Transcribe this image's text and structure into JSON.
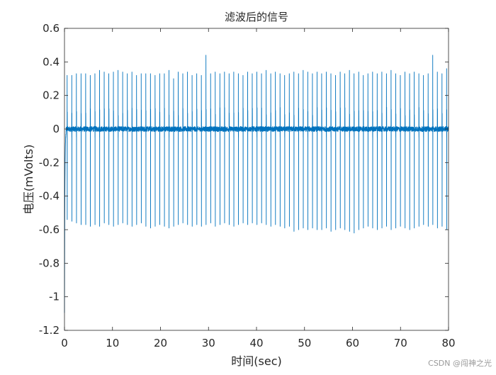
{
  "chart_data": {
    "type": "line",
    "title": "滤波后的信号",
    "xlabel": "时间(sec)",
    "ylabel": "电压(mVolts)",
    "xlim": [
      0,
      80
    ],
    "ylim": [
      -1.2,
      0.6
    ],
    "xticks": [
      0,
      10,
      20,
      30,
      40,
      50,
      60,
      70,
      80
    ],
    "yticks": [
      0.6,
      0.4,
      0.2,
      0,
      -0.2,
      -0.4,
      -0.6,
      -0.8,
      -1,
      -1.2
    ],
    "xtick_labels": [
      "0",
      "10",
      "20",
      "30",
      "40",
      "50",
      "60",
      "70",
      "80"
    ],
    "ytick_labels": [
      "0.6",
      "0.4",
      "0.2",
      "0",
      "-0.2",
      "-0.4",
      "-0.6",
      "-0.8",
      "-1",
      "-1.2"
    ],
    "grid": false,
    "line_color": "#0072BD",
    "series": [
      {
        "beat_period_sec": 0.964,
        "first_beat_sec": 0.55,
        "noise_amplitude": 0.015,
        "initial_dip": -1.1,
        "x": [
          0.55,
          1.52,
          2.48,
          3.45,
          4.41,
          5.37,
          6.34,
          7.3,
          8.27,
          9.23,
          10.19,
          11.16,
          12.12,
          13.09,
          14.05,
          15.01,
          15.98,
          16.94,
          17.91,
          18.87,
          19.83,
          20.8,
          21.76,
          22.73,
          23.69,
          24.65,
          25.62,
          26.58,
          27.55,
          28.51,
          29.47,
          30.44,
          31.4,
          32.37,
          33.33,
          34.29,
          35.26,
          36.22,
          37.19,
          38.15,
          39.11,
          40.08,
          41.04,
          42.01,
          42.97,
          43.93,
          44.9,
          45.86,
          46.83,
          47.79,
          48.75,
          49.72,
          50.68,
          51.65,
          52.61,
          53.57,
          54.54,
          55.5,
          56.47,
          57.43,
          58.39,
          59.36,
          60.32,
          61.29,
          62.25,
          63.21,
          64.18,
          65.14,
          66.11,
          67.07,
          68.03,
          69.0,
          69.96,
          70.93,
          71.89,
          72.85,
          73.82,
          74.78,
          75.75,
          76.71,
          77.67,
          78.64,
          79.6
        ],
        "r_peak": [
          0.32,
          0.32,
          0.33,
          0.33,
          0.33,
          0.32,
          0.33,
          0.35,
          0.34,
          0.33,
          0.34,
          0.35,
          0.34,
          0.33,
          0.34,
          0.32,
          0.33,
          0.33,
          0.33,
          0.32,
          0.33,
          0.33,
          0.35,
          0.3,
          0.34,
          0.33,
          0.34,
          0.32,
          0.33,
          0.32,
          0.44,
          0.33,
          0.34,
          0.33,
          0.34,
          0.33,
          0.34,
          0.33,
          0.32,
          0.34,
          0.33,
          0.34,
          0.33,
          0.35,
          0.33,
          0.34,
          0.33,
          0.32,
          0.33,
          0.34,
          0.33,
          0.35,
          0.34,
          0.33,
          0.34,
          0.33,
          0.34,
          0.33,
          0.32,
          0.34,
          0.33,
          0.35,
          0.33,
          0.34,
          0.32,
          0.33,
          0.34,
          0.33,
          0.34,
          0.33,
          0.35,
          0.33,
          0.32,
          0.34,
          0.33,
          0.34,
          0.33,
          0.32,
          0.33,
          0.44,
          0.34,
          0.33,
          0.36
        ],
        "s_trough": [
          -0.54,
          -0.55,
          -0.56,
          -0.57,
          -0.57,
          -0.58,
          -0.57,
          -0.58,
          -0.56,
          -0.57,
          -0.58,
          -0.57,
          -0.56,
          -0.57,
          -0.58,
          -0.57,
          -0.56,
          -0.58,
          -0.59,
          -0.58,
          -0.57,
          -0.58,
          -0.59,
          -0.58,
          -0.57,
          -0.56,
          -0.57,
          -0.58,
          -0.57,
          -0.58,
          -0.57,
          -0.56,
          -0.58,
          -0.57,
          -0.56,
          -0.57,
          -0.58,
          -0.57,
          -0.56,
          -0.57,
          -0.56,
          -0.57,
          -0.56,
          -0.57,
          -0.58,
          -0.57,
          -0.58,
          -0.59,
          -0.58,
          -0.61,
          -0.6,
          -0.59,
          -0.6,
          -0.59,
          -0.6,
          -0.6,
          -0.59,
          -0.61,
          -0.6,
          -0.59,
          -0.6,
          -0.61,
          -0.62,
          -0.6,
          -0.59,
          -0.58,
          -0.59,
          -0.6,
          -0.59,
          -0.58,
          -0.6,
          -0.59,
          -0.58,
          -0.59,
          -0.6,
          -0.59,
          -0.58,
          -0.57,
          -0.58,
          -0.57,
          -0.59,
          -0.58,
          -0.6
        ]
      }
    ]
  },
  "watermark": "CSDN @闯神之光"
}
